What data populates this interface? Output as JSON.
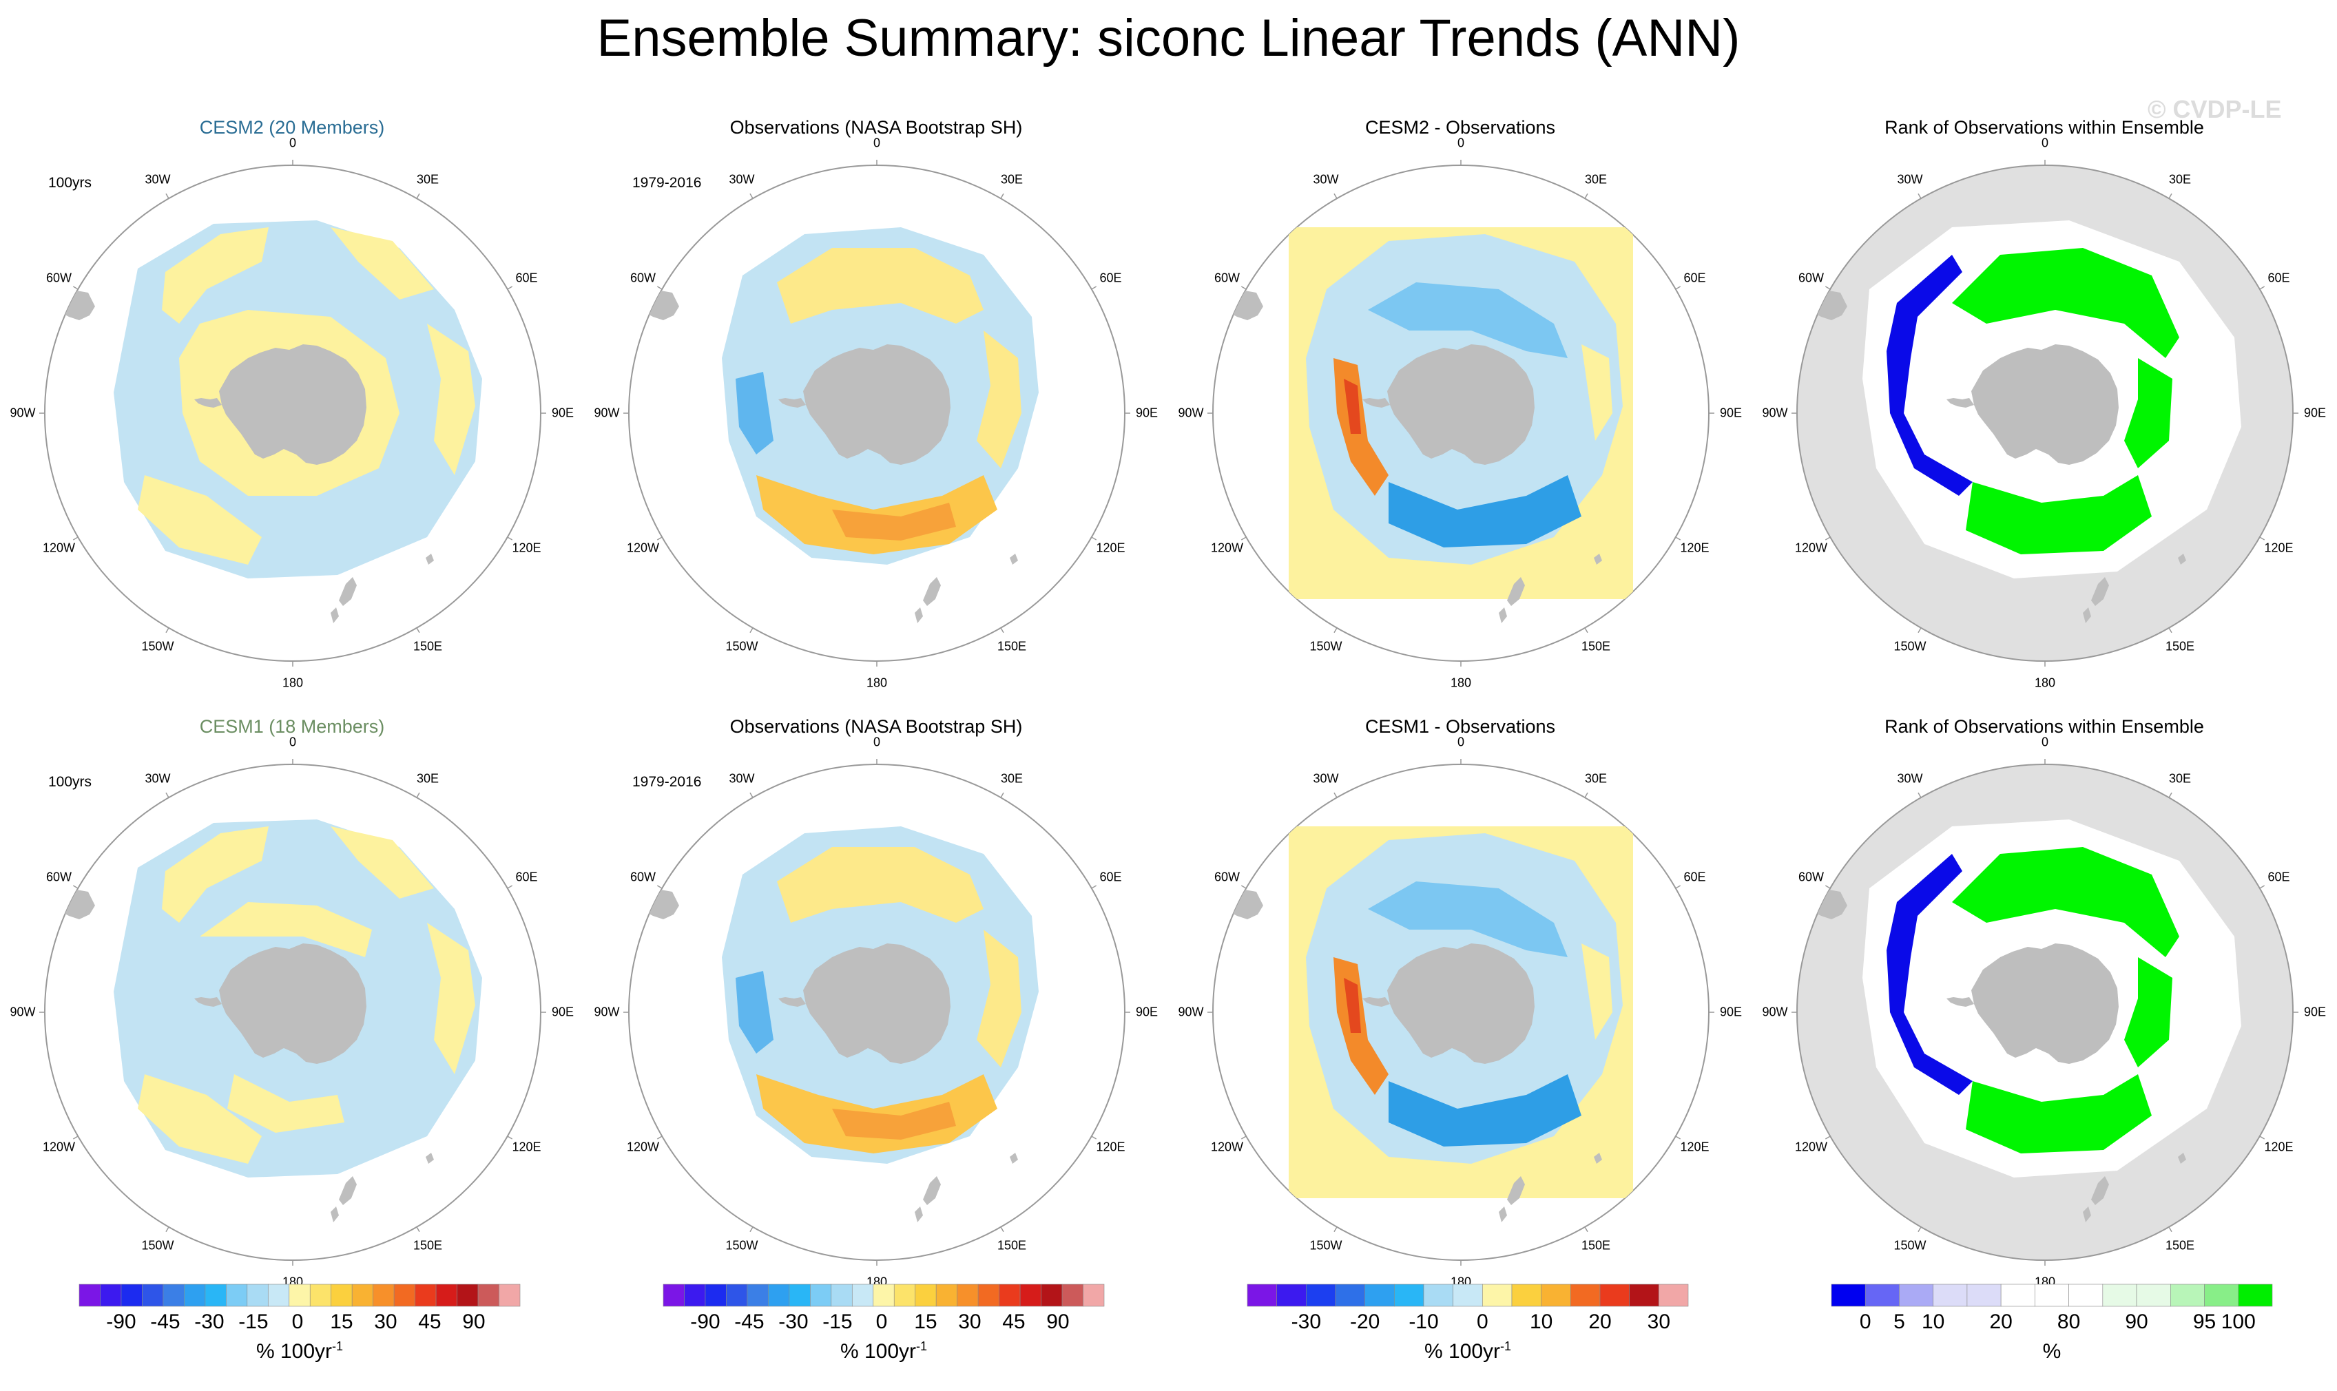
{
  "title": "Ensemble Summary: siconc Linear Trends (ANN)",
  "watermark": "© CVDP-LE",
  "colors": {
    "cesm2_title": "#2a6d94",
    "cesm1_title": "#6b8e62",
    "land": "#bebebe",
    "ocean_rank": "#e0e0e0",
    "yellow": "#fdf29e",
    "lightblue": "#c2e3f3",
    "green": "#00f500",
    "blue": "#0a0ae8"
  },
  "lon_labels": [
    "0",
    "30E",
    "60E",
    "90E",
    "120E",
    "150E",
    "180",
    "150W",
    "120W",
    "90W",
    "60W",
    "30W"
  ],
  "rows": [
    {
      "panels": [
        {
          "title": "CESM2 (20 Members)",
          "period": "100yrs",
          "kind": "model"
        },
        {
          "title": "Observations (NASA Bootstrap SH)",
          "period": "1979-2016",
          "kind": "obs"
        },
        {
          "title": "CESM2 - Observations",
          "period": "",
          "kind": "diff"
        },
        {
          "title": "Rank of Observations within Ensemble",
          "period": "",
          "kind": "rank"
        }
      ]
    },
    {
      "panels": [
        {
          "title": "CESM1 (18 Members)",
          "period": "100yrs",
          "kind": "model"
        },
        {
          "title": "Observations (NASA Bootstrap SH)",
          "period": "1979-2016",
          "kind": "obs"
        },
        {
          "title": "CESM1 - Observations",
          "period": "",
          "kind": "diff"
        },
        {
          "title": "Rank of Observations within Ensemble",
          "period": "",
          "kind": "rank"
        }
      ]
    }
  ],
  "colorbars": [
    {
      "ticks": [
        "-90",
        "-45",
        "-30",
        "-15",
        "0",
        "15",
        "30",
        "45",
        "90"
      ],
      "units": "% 100yr",
      "units_sup": "-1",
      "colors": [
        "#7b16e6",
        "#3c1aef",
        "#1c2bf0",
        "#2e55e8",
        "#3b7fe6",
        "#2ea0f0",
        "#29b6f6",
        "#7cccf5",
        "#a9dbf4",
        "#c8e8f6",
        "#fdf5a8",
        "#fce36a",
        "#fbd03e",
        "#f9b232",
        "#f7902a",
        "#f26a22",
        "#ea3b1d",
        "#d61c1a",
        "#b31418",
        "#cc5a5a",
        "#f1a7a7"
      ]
    },
    {
      "ticks": [
        "-90",
        "-45",
        "-30",
        "-15",
        "0",
        "15",
        "30",
        "45",
        "90"
      ],
      "units": "% 100yr",
      "units_sup": "-1",
      "colors": [
        "#7b16e6",
        "#3c1aef",
        "#1c2bf0",
        "#2e55e8",
        "#3b7fe6",
        "#2ea0f0",
        "#29b6f6",
        "#7cccf5",
        "#a9dbf4",
        "#c8e8f6",
        "#fdf5a8",
        "#fce36a",
        "#fbd03e",
        "#f9b232",
        "#f7902a",
        "#f26a22",
        "#ea3b1d",
        "#d61c1a",
        "#b31418",
        "#cc5a5a",
        "#f1a7a7"
      ]
    },
    {
      "ticks": [
        "-30",
        "-20",
        "-10",
        "0",
        "10",
        "20",
        "30"
      ],
      "units": "% 100yr",
      "units_sup": "-1",
      "colors": [
        "#7b16e6",
        "#3c1aef",
        "#1c3ff0",
        "#2e70e8",
        "#2ea0f0",
        "#29b6f6",
        "#a9dbf4",
        "#c8e8f6",
        "#fdf5a8",
        "#fbd03e",
        "#f9b232",
        "#f26a22",
        "#ea3b1d",
        "#b31418",
        "#f1a7a7"
      ]
    },
    {
      "ticks": [
        "0",
        "5",
        "10",
        "20",
        "80",
        "90",
        "95",
        "100"
      ],
      "units": "%",
      "units_sup": "",
      "colors": [
        "#0000f0",
        "#6666f5",
        "#aaaaf5",
        "#dcdcf8",
        "#dcdcf8",
        "#ffffff",
        "#ffffff",
        "#ffffff",
        "#e6fae6",
        "#e6fae6",
        "#b8f5b8",
        "#88ee88",
        "#00ee00"
      ]
    }
  ]
}
